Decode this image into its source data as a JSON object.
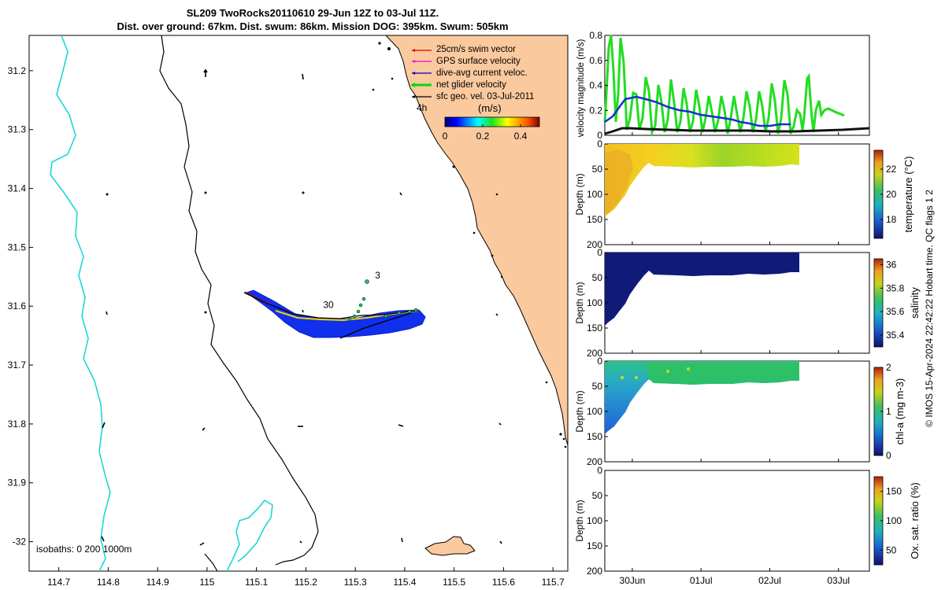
{
  "title": {
    "line1": "SL209 TwoRocks20110610 29-Jun 12Z to 03-Jul 11Z.",
    "line2": "Dist. over ground: 67km. Dist. swum: 86km. Mission DOG: 395km. Swum: 505km"
  },
  "copyright": "© IMOS 15-Apr-2024 22:42:22 Hobart time. QC flags 1  2",
  "chart_data": [
    {
      "type": "map",
      "name": "glider-track-map",
      "x_ticks": [
        "114.7",
        "114.8",
        "114.9",
        "115",
        "115.1",
        "115.2",
        "115.3",
        "115.4",
        "115.5",
        "115.6",
        "115.7"
      ],
      "y_ticks": [
        "31.2",
        "31.3",
        "31.4",
        "31.5",
        "31.6",
        "31.7",
        "31.8",
        "31.9",
        "-32"
      ],
      "xlim": [
        114.64,
        115.73
      ],
      "ylim": [
        -32.05,
        -31.14
      ],
      "legend": [
        {
          "label": "25cm/s swim vector",
          "color": "#dd0000"
        },
        {
          "label": "GPS surface velocity",
          "color": "#ee00ee"
        },
        {
          "label": "dive-avg current veloc.",
          "color": "#0000cc"
        },
        {
          "label": "net glider velocity",
          "color": "#00dd00"
        },
        {
          "label": "sfc geo. vel. 03-Jul-2011",
          "color": "#000000"
        }
      ],
      "legend_extra": "4h",
      "colorbar": {
        "label": "(m/s)",
        "ticks": [
          "0",
          "0.2",
          "0.4"
        ],
        "range": [
          0,
          0.5
        ]
      },
      "isobaths_label": "isobaths: 0   200  1000m",
      "annotations": [
        {
          "text": "3",
          "lon": 115.34,
          "lat": -31.553
        },
        {
          "text": "30",
          "lon": 115.235,
          "lat": -31.603
        }
      ]
    },
    {
      "type": "line",
      "name": "velocity-magnitude",
      "ylabel": "velocity magnitude (m/s)",
      "y_ticks": [
        "0",
        "0.2",
        "0.4",
        "0.6",
        "0.8"
      ],
      "ylim": [
        0,
        0.8
      ],
      "x_range_days": [
        29.6,
        33.45
      ],
      "series": [
        {
          "color": "#22dd22",
          "values_desc": "net glider velocity oscillating"
        },
        {
          "color": "#1a2ecc"
        },
        {
          "color": "#111111"
        }
      ]
    },
    {
      "type": "heatmap",
      "name": "temperature-section",
      "ylabel": "Depth (m)",
      "y_ticks": [
        "0",
        "50",
        "100",
        "150",
        "200"
      ],
      "cbar_label": "temperature (°C)",
      "cbar_ticks": [
        "18",
        "20",
        "22"
      ],
      "cbar_range": [
        16.5,
        23.5
      ]
    },
    {
      "type": "heatmap",
      "name": "salinity-section",
      "ylabel": "Depth (m)",
      "y_ticks": [
        "0",
        "50",
        "100",
        "150",
        "200"
      ],
      "cbar_label": "salinity",
      "cbar_ticks": [
        "35.4",
        "35.6",
        "35.8",
        "36"
      ],
      "cbar_range": [
        35.3,
        36.05
      ]
    },
    {
      "type": "heatmap",
      "name": "chlorophyll-section",
      "ylabel": "Depth (m)",
      "y_ticks": [
        "0",
        "50",
        "100",
        "150",
        "200"
      ],
      "cbar_label": "chl-a (mg m-3)",
      "cbar_ticks": [
        "0",
        "1",
        "2"
      ],
      "cbar_range": [
        0,
        2
      ]
    },
    {
      "type": "heatmap",
      "name": "oxygen-section",
      "ylabel": "Depth (m)",
      "y_ticks": [
        "0",
        "50",
        "100",
        "150",
        "200"
      ],
      "cbar_label": "Ox. sat. ratio (%)",
      "cbar_ticks": [
        "50",
        "100",
        "150"
      ],
      "cbar_range": [
        25,
        175
      ],
      "x_ticks": [
        "30Jun",
        "01Jul",
        "02Jul",
        "03Jul"
      ]
    }
  ]
}
